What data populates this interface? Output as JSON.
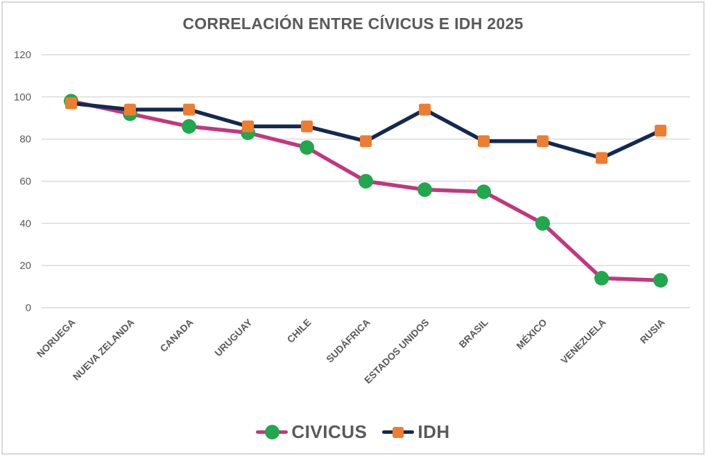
{
  "chart_data": {
    "type": "line",
    "title": "CORRELACIÓN ENTRE CÍVICUS E IDH 2025",
    "categories": [
      "NORUEGA",
      "NUEVA ZELANDA",
      "CANADA",
      "URUGUAY",
      "CHILE",
      "SUDÁFRICA",
      "ESTADOS UNIDOS",
      "BRASIL",
      "MÉXICO",
      "VENEZUELA",
      "RUSIA"
    ],
    "series": [
      {
        "name": "CIVICUS",
        "values": [
          98,
          92,
          86,
          83,
          76,
          60,
          56,
          55,
          40,
          14,
          13
        ],
        "line_color": "#c1387f",
        "marker": "circle",
        "marker_color": "#21a74d"
      },
      {
        "name": "IDH",
        "values": [
          97,
          94,
          94,
          86,
          86,
          79,
          94,
          79,
          79,
          71,
          84
        ],
        "line_color": "#14294f",
        "marker": "square",
        "marker_color": "#ed7d31"
      }
    ],
    "ylim": [
      0,
      120
    ],
    "y_ticks": [
      0,
      20,
      40,
      60,
      80,
      100,
      120
    ],
    "xlabel": "",
    "ylabel": "",
    "grid": "horizontal",
    "legend_position": "bottom",
    "colors": {
      "grid": "#d9d9d9",
      "axis_text": "#595959",
      "title_text": "#595959",
      "frame_border": "#d8d8d8"
    }
  }
}
